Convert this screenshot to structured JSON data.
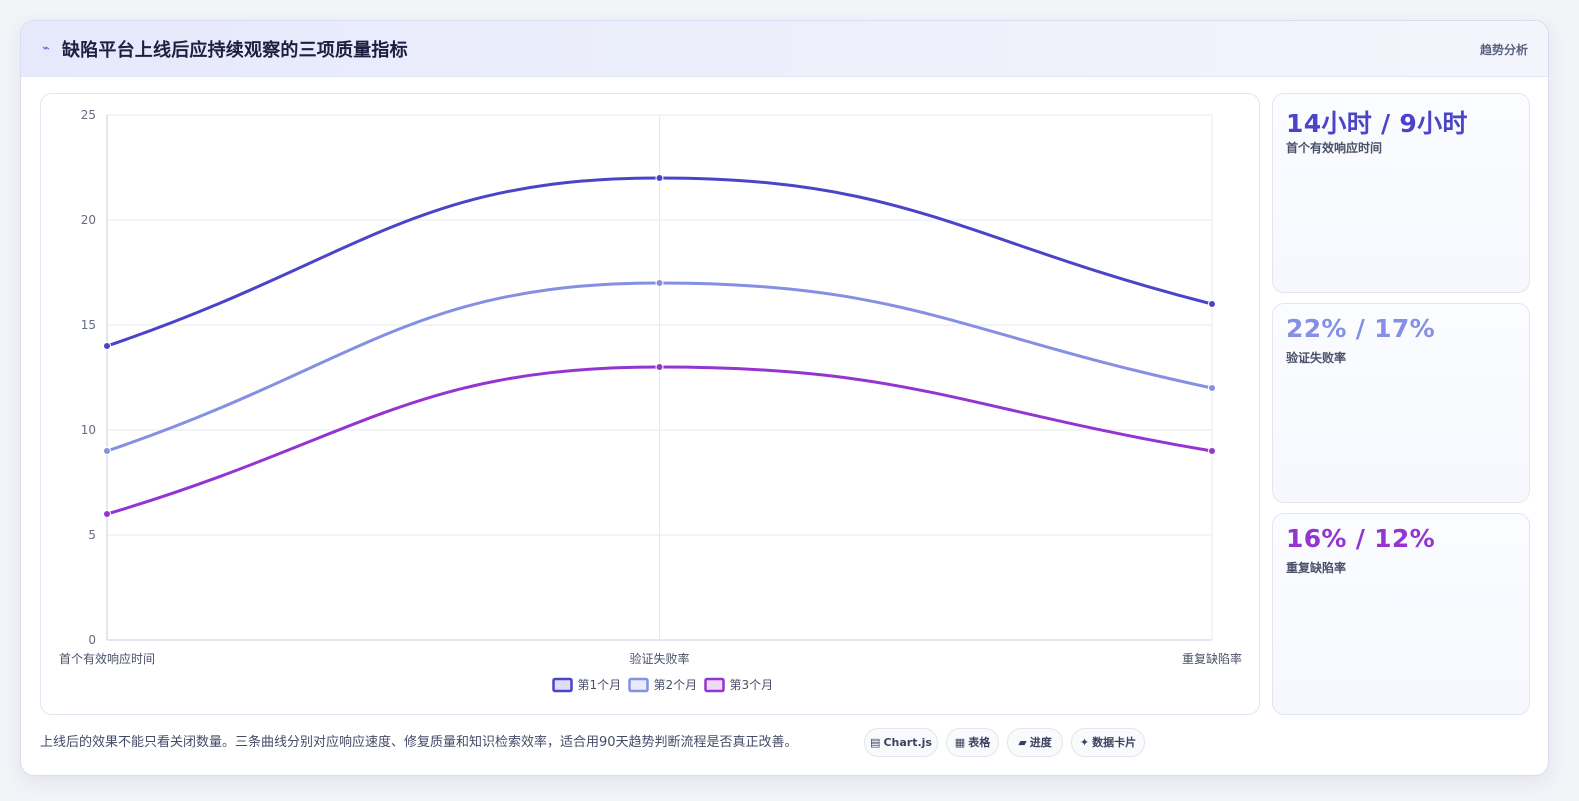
{
  "header": {
    "icon": "chart-icon",
    "title": "缺陷平台上线后应持续观察的三项质量指标",
    "tag": "趋势分析"
  },
  "chart_data": {
    "type": "line",
    "categories": [
      "首个有效响应时间",
      "验证失败率",
      "重复缺陷率"
    ],
    "series": [
      {
        "name": "第1个月",
        "values": [
          14,
          22,
          16
        ],
        "color": "#4b44c9"
      },
      {
        "name": "第2个月",
        "values": [
          9,
          17,
          12
        ],
        "color": "#8590e4"
      },
      {
        "name": "第3个月",
        "values": [
          6,
          13,
          9
        ],
        "color": "#9434d1"
      }
    ],
    "ylim": [
      0,
      25
    ],
    "yticks": [
      "0",
      "5",
      "10",
      "15",
      "20",
      "25"
    ],
    "grid": true,
    "legend": "bottom-center"
  },
  "stats": [
    {
      "value": "14小时 / 9小时",
      "label": "首个有效响应时间",
      "color": "#4b44c9"
    },
    {
      "value": "22% / 17%",
      "label": "验证失败率",
      "color": "#8590e4"
    },
    {
      "value": "16% / 12%",
      "label": "重复缺陷率",
      "color": "#9434d1"
    }
  ],
  "footnote": "上线后的效果不能只看关闭数量。三条曲线分别对应响应速度、修复质量和知识检索效率，适合用90天趋势判断流程是否真正改善。",
  "chips": [
    {
      "icon": "chart-icon",
      "glyph": "▤",
      "label": "Chart.js"
    },
    {
      "icon": "table-icon",
      "glyph": "▦",
      "label": "表格"
    },
    {
      "icon": "progress-icon",
      "glyph": "▰",
      "label": "进度"
    },
    {
      "icon": "sparkle-icon",
      "glyph": "✦",
      "label": "数据卡片"
    }
  ]
}
